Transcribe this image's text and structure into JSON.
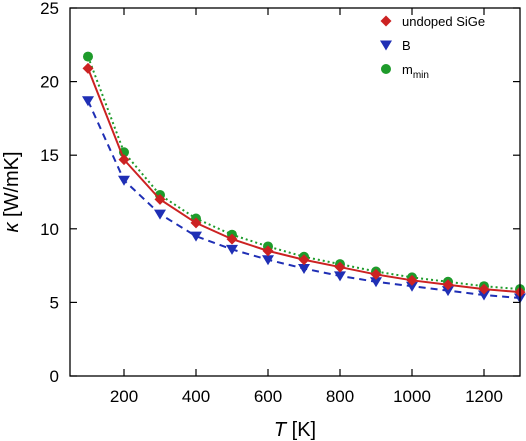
{
  "chart_data": {
    "type": "line",
    "title": "",
    "xlabel": "T [K]",
    "ylabel": "κ [W/mK]",
    "xlim": [
      50,
      1300
    ],
    "ylim": [
      0,
      25
    ],
    "xticks": [
      200,
      400,
      600,
      800,
      1000,
      1200
    ],
    "yticks": [
      0,
      5,
      10,
      15,
      20,
      25
    ],
    "grid": false,
    "legend": "top-right",
    "x": [
      100,
      200,
      300,
      400,
      500,
      600,
      700,
      800,
      900,
      1000,
      1100,
      1200,
      1300
    ],
    "series": [
      {
        "name": "undoped SiGe",
        "marker": "diamond",
        "line": "solid",
        "color": "#cc2222",
        "values": [
          20.9,
          14.7,
          12.0,
          10.4,
          9.3,
          8.5,
          7.9,
          7.4,
          6.9,
          6.5,
          6.2,
          5.9,
          5.7
        ]
      },
      {
        "name": "B",
        "marker": "triangle-down",
        "line": "dashed",
        "color": "#1f2fb5",
        "values": [
          18.7,
          13.3,
          11.0,
          9.5,
          8.6,
          7.9,
          7.3,
          6.8,
          6.4,
          6.1,
          5.8,
          5.5,
          5.3
        ]
      },
      {
        "name": "m",
        "name_subscript": "min",
        "marker": "circle",
        "line": "dotted",
        "color": "#1e9b2b",
        "values": [
          21.7,
          15.2,
          12.3,
          10.7,
          9.6,
          8.8,
          8.1,
          7.6,
          7.1,
          6.7,
          6.4,
          6.1,
          5.9
        ]
      }
    ]
  }
}
